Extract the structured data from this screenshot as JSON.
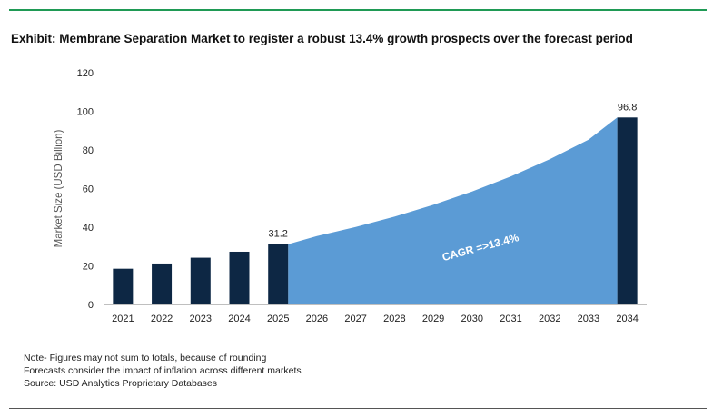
{
  "title": "Exhibit: Membrane Separation Market to register a robust 13.4% growth prospects over the forecast period",
  "colors": {
    "bar": "#0d2744",
    "area": "#5b9bd5",
    "rule": "#1f9a55",
    "text": "#222222"
  },
  "notes": [
    "Note- Figures may not sum to totals, because of rounding",
    "Forecasts consider the impact of inflation across different markets",
    "Source: USD Analytics Proprietary Databases"
  ],
  "chart_data": {
    "type": "bar",
    "ylabel": "Market Size (USD Billion)",
    "xlabel": "",
    "ylim": [
      0,
      120
    ],
    "yticks": [
      0,
      20,
      40,
      60,
      80,
      100,
      120
    ],
    "grid": false,
    "categories": [
      "2021",
      "2022",
      "2023",
      "2024",
      "2025",
      "2026",
      "2027",
      "2028",
      "2029",
      "2030",
      "2031",
      "2032",
      "2033",
      "2034"
    ],
    "bars": [
      {
        "year": "2021",
        "value": 18.5
      },
      {
        "year": "2022",
        "value": 21.2
      },
      {
        "year": "2023",
        "value": 24.2
      },
      {
        "year": "2024",
        "value": 27.3
      },
      {
        "year": "2025",
        "value": 31.2,
        "label": "31.2"
      },
      {
        "year": "2034",
        "value": 96.8,
        "label": "96.8"
      }
    ],
    "area": {
      "from_year": "2025",
      "to_year": "2034",
      "values": [
        31.2,
        35.4,
        40.1,
        45.5,
        51.6,
        58.5,
        66.3,
        75.2,
        85.3,
        96.8
      ]
    },
    "annotation": "CAGR =>13.4%"
  }
}
